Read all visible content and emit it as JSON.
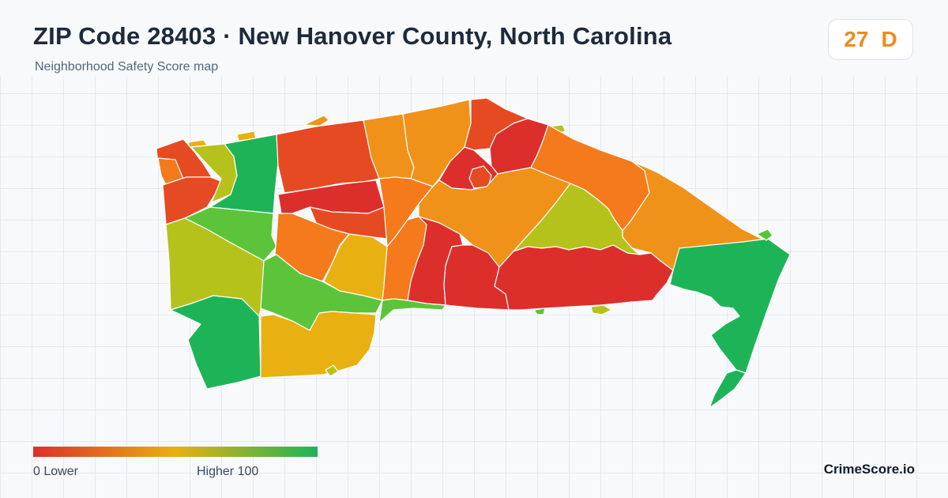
{
  "header": {
    "title": "ZIP Code 28403 · New Hanover County, North Carolina",
    "subtitle": "Neighborhood Safety Score map"
  },
  "score": {
    "value": "27",
    "grade": "D",
    "color": "#ee8a1d"
  },
  "legend": {
    "low_label": "0  Lower",
    "high_label": "Higher  100",
    "color_low": "#dc2f2b",
    "color_mid": "#e8b010",
    "color_high": "#1db458"
  },
  "brand": "CrimeScore.io",
  "colors": {
    "red": "#dc2f2b",
    "red_orange": "#e64a22",
    "orange": "#f47a1c",
    "amber": "#f0921a",
    "gold": "#e8b010",
    "olive": "#b5c21b",
    "light_green": "#5cc43a",
    "green": "#1db458"
  }
}
